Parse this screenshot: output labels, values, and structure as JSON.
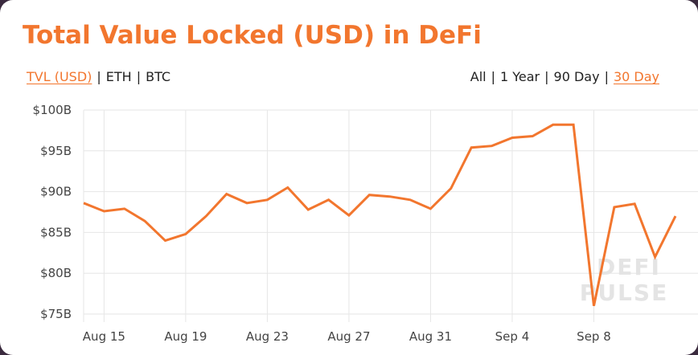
{
  "header": {
    "title": "Total Value Locked (USD) in DeFi"
  },
  "metric_tabs": [
    {
      "label": "TVL (USD)",
      "active": true
    },
    {
      "label": "ETH",
      "active": false
    },
    {
      "label": "BTC",
      "active": false
    }
  ],
  "range_tabs": [
    {
      "label": "All",
      "active": false
    },
    {
      "label": "1 Year",
      "active": false
    },
    {
      "label": "90 Day",
      "active": false
    },
    {
      "label": "30 Day",
      "active": true
    }
  ],
  "separator": "|",
  "watermark": {
    "line1": "DEFI",
    "line2": "PULSE"
  },
  "colors": {
    "accent": "#f2762e",
    "grid": "#e6e6e6",
    "text": "#444444"
  },
  "chart_data": {
    "type": "line",
    "title": "",
    "xlabel": "",
    "ylabel": "",
    "ylim": [
      75,
      100
    ],
    "y_unit": "B USD",
    "yticks": [
      {
        "value": 100,
        "label": "$100B"
      },
      {
        "value": 95,
        "label": "$95B"
      },
      {
        "value": 90,
        "label": "$90B"
      },
      {
        "value": 85,
        "label": "$85B"
      },
      {
        "value": 80,
        "label": "$80B"
      },
      {
        "value": 75,
        "label": "$75B"
      }
    ],
    "xticks": [
      {
        "date": "Aug 15",
        "label": "Aug 15"
      },
      {
        "date": "Aug 19",
        "label": "Aug 19"
      },
      {
        "date": "Aug 23",
        "label": "Aug 23"
      },
      {
        "date": "Aug 27",
        "label": "Aug 27"
      },
      {
        "date": "Aug 31",
        "label": "Aug 31"
      },
      {
        "date": "Sep 4",
        "label": "Sep 4"
      },
      {
        "date": "Sep 8",
        "label": "Sep 8"
      }
    ],
    "grid": true,
    "series": [
      {
        "x": [
          "Aug 14",
          "Aug 15",
          "Aug 16",
          "Aug 17",
          "Aug 18",
          "Aug 19",
          "Aug 20",
          "Aug 21",
          "Aug 22",
          "Aug 23",
          "Aug 24",
          "Aug 25",
          "Aug 26",
          "Aug 27",
          "Aug 28",
          "Aug 29",
          "Aug 30",
          "Aug 31",
          "Sep 1",
          "Sep 2",
          "Sep 3",
          "Sep 4",
          "Sep 5",
          "Sep 6",
          "Sep 7",
          "Sep 8",
          "Sep 9",
          "Sep 10",
          "Sep 11",
          "Sep 12"
        ],
        "values": [
          88.6,
          87.6,
          87.9,
          86.4,
          84.0,
          84.8,
          87.0,
          89.7,
          88.6,
          89.0,
          90.5,
          87.8,
          89.0,
          87.1,
          89.6,
          89.4,
          89.0,
          87.9,
          90.4,
          95.4,
          95.6,
          96.6,
          96.8,
          98.2,
          98.2,
          76.0,
          88.1,
          88.5,
          82.0,
          87.0
        ]
      }
    ]
  }
}
